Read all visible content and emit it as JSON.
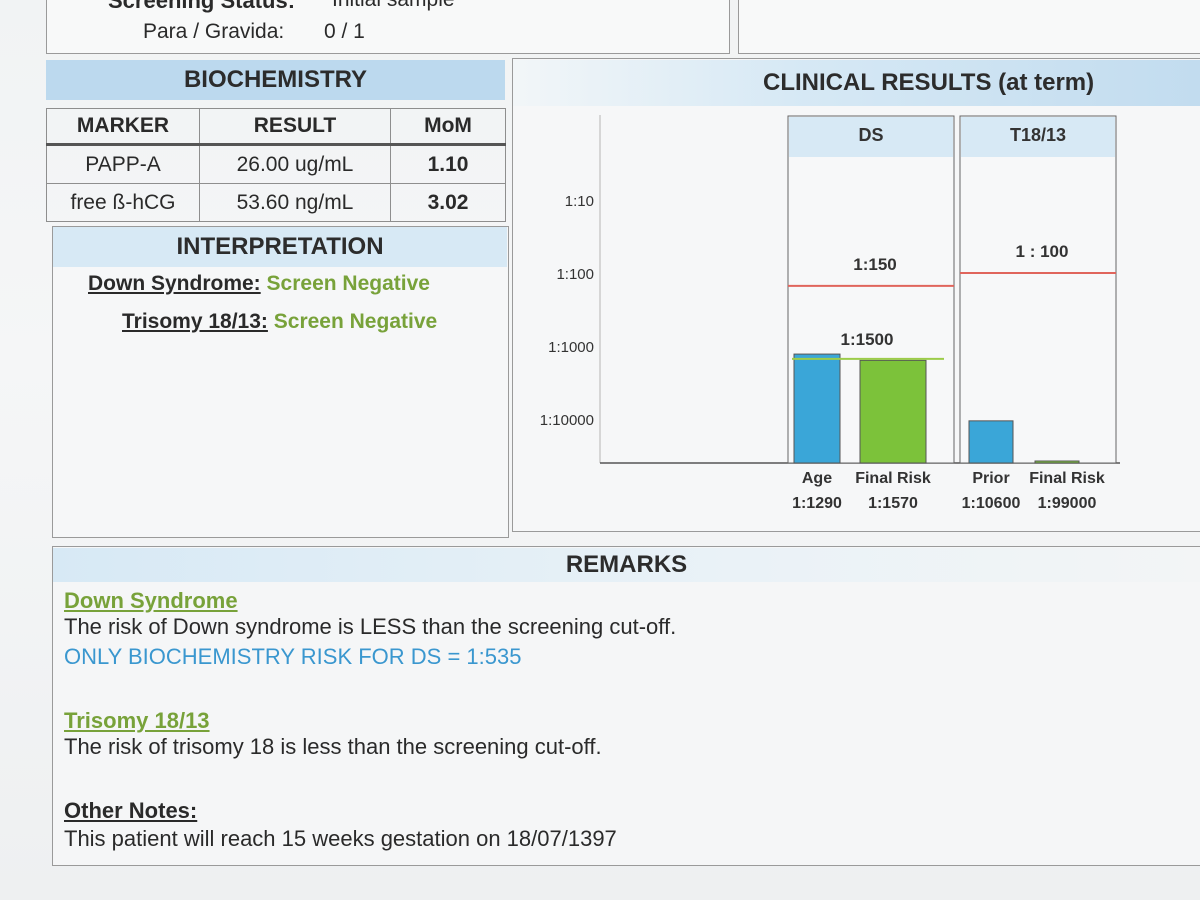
{
  "header": {
    "screening_status_label": "Screening Status:",
    "screening_status_value": "Initial sample",
    "para_gravida_label": "Para / Gravida:",
    "para_gravida_value": "0 / 1"
  },
  "biochemistry": {
    "title": "BIOCHEMISTRY",
    "columns": [
      "MARKER",
      "RESULT",
      "MoM"
    ],
    "rows": [
      {
        "marker": "PAPP-A",
        "result": "26.00 ug/mL",
        "mom": "1.10"
      },
      {
        "marker": "free ß-hCG",
        "result": "53.60 ng/mL",
        "mom": "3.02"
      }
    ]
  },
  "interpretation": {
    "title": "INTERPRETATION",
    "items": [
      {
        "label": "Down Syndrome:",
        "value": "Screen Negative"
      },
      {
        "label": "Trisomy 18/13:",
        "value": "Screen Negative"
      }
    ]
  },
  "clinical": {
    "title": "CLINICAL RESULTS (at term)",
    "colors": {
      "blue": "#3aa6d8",
      "green": "#7cc23a",
      "red": "#e0655c",
      "header": "#d7e9f5"
    }
  },
  "chart_data": {
    "type": "bar",
    "y_scale": "log",
    "y_ticks": [
      "1:10",
      "1:100",
      "1:1000",
      "1:10000"
    ],
    "panels": [
      {
        "name": "DS",
        "cutoff_label": "1:150",
        "cutoff": 150,
        "marker_label": "1:1500",
        "bars": [
          {
            "label": "Age",
            "value_label": "1:1290",
            "value": 1290,
            "color": "blue"
          },
          {
            "label": "Final Risk",
            "value_label": "1:1570",
            "value": 1570,
            "color": "green"
          }
        ]
      },
      {
        "name": "T18/13",
        "cutoff_label": "1 : 100",
        "cutoff": 100,
        "bars": [
          {
            "label": "Prior",
            "value_label": "1:10600",
            "value": 10600,
            "color": "blue"
          },
          {
            "label": "Final Risk",
            "value_label": "1:99000",
            "value": 99000,
            "color": "green"
          }
        ]
      }
    ]
  },
  "remarks": {
    "title": "REMARKS",
    "ds_heading": "Down Syndrome",
    "ds_text": "The risk of Down syndrome is LESS than the screening cut-off.",
    "ds_note": "ONLY BIOCHEMISTRY RISK FOR DS = 1:535",
    "t18_heading": "Trisomy 18/13",
    "t18_text": "The risk of trisomy 18 is less than the screening cut-off.",
    "other_heading": "Other Notes:",
    "other_text": "This patient will reach 15 weeks gestation on 18/07/1397"
  }
}
